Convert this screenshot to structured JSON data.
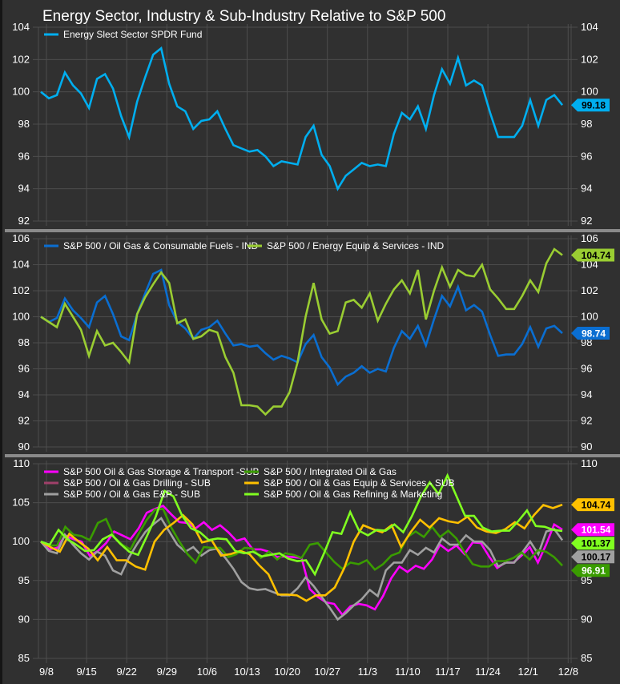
{
  "title": "Energy Sector, Industry & Sub-Industry Relative to S&P 500",
  "x_tick_labels": [
    "9/8",
    "9/15",
    "9/22",
    "9/29",
    "10/6",
    "10/13",
    "10/20",
    "10/27",
    "11/3",
    "11/10",
    "11/17",
    "11/24",
    "12/1",
    "12/8"
  ],
  "chart_data": [
    {
      "type": "line",
      "title": "Energy Sector, Industry & Sub-Industry Relative to S&P 500",
      "ylim": [
        92,
        104
      ],
      "yticks": [
        92,
        94,
        96,
        98,
        100,
        102,
        104
      ],
      "grid": true,
      "legend": "top-left",
      "series": [
        {
          "name": "Energy Slect Sector SPDR Fund",
          "color": "#00aeef",
          "last_label": "99.18",
          "label_text_color": "#000000",
          "values": [
            100,
            99.6,
            99.8,
            101.2,
            100.4,
            99.9,
            99.0,
            100.8,
            101.1,
            100.2,
            98.5,
            97.2,
            99.4,
            100.9,
            102.3,
            102.7,
            100.5,
            99.1,
            98.8,
            97.7,
            98.2,
            98.3,
            98.8,
            97.7,
            96.7,
            96.5,
            96.3,
            96.4,
            96.0,
            95.4,
            95.7,
            95.6,
            95.5,
            97.2,
            97.9,
            96.1,
            95.4,
            94.0,
            94.8,
            95.2,
            95.6,
            95.4,
            95.5,
            95.4,
            97.4,
            98.7,
            98.3,
            99.1,
            97.7,
            99.8,
            101.4,
            100.5,
            102.1,
            100.4,
            100.7,
            100.4,
            98.7,
            97.2,
            97.2,
            97.2,
            97.9,
            99.5,
            97.9,
            99.5,
            99.8,
            99.18
          ]
        }
      ]
    },
    {
      "type": "line",
      "ylim": [
        90,
        106
      ],
      "yticks": [
        90,
        92,
        94,
        96,
        98,
        100,
        102,
        104,
        106
      ],
      "grid": true,
      "legend": "top-left",
      "series": [
        {
          "name": "S&P 500 / Oil Gas & Consumable Fuels - IND",
          "color": "#0a6ed1",
          "last_label": "98.74",
          "label_text_color": "#ffffff",
          "values": [
            100,
            99.6,
            99.9,
            101.4,
            100.5,
            99.9,
            99.2,
            101.1,
            101.6,
            100.2,
            98.5,
            98.2,
            100.2,
            101.8,
            103.3,
            103.6,
            100.9,
            99.6,
            99.1,
            98.3,
            99.0,
            99.2,
            99.7,
            98.7,
            97.8,
            97.9,
            97.7,
            97.8,
            97.2,
            96.7,
            97.0,
            96.8,
            96.5,
            97.9,
            98.6,
            96.9,
            96.1,
            94.8,
            95.4,
            95.7,
            96.2,
            95.7,
            96.0,
            95.8,
            97.6,
            98.9,
            98.3,
            99.3,
            97.8,
            99.8,
            101.6,
            100.8,
            102.3,
            100.5,
            100.9,
            100.4,
            98.6,
            97.0,
            97.1,
            97.1,
            97.9,
            99.2,
            97.7,
            99.1,
            99.3,
            98.74
          ]
        },
        {
          "name": "S&P 500 / Energy Equip & Services - IND",
          "color": "#9acd32",
          "last_label": "104.74",
          "label_text_color": "#000000",
          "values": [
            100,
            99.6,
            99.2,
            101.0,
            100.0,
            99.0,
            97.0,
            98.9,
            97.8,
            98.0,
            97.3,
            96.5,
            100.2,
            101.5,
            102.5,
            103.4,
            102.6,
            99.5,
            99.8,
            98.3,
            98.5,
            99.0,
            98.8,
            96.9,
            95.7,
            93.2,
            93.2,
            93.1,
            92.5,
            93.1,
            93.1,
            94.2,
            96.5,
            100.0,
            102.6,
            99.8,
            98.7,
            98.9,
            101.1,
            101.3,
            100.7,
            101.8,
            99.7,
            101.0,
            102.1,
            102.8,
            101.8,
            103.6,
            99.8,
            102.0,
            103.8,
            102.3,
            103.6,
            103.2,
            103.1,
            104.0,
            102.1,
            101.4,
            100.6,
            100.6,
            101.6,
            102.8,
            101.9,
            104.1,
            105.2,
            104.74
          ]
        }
      ]
    },
    {
      "type": "line",
      "ylim": [
        85,
        110
      ],
      "yticks": [
        85,
        90,
        95,
        100,
        105,
        110
      ],
      "grid": true,
      "legend": "top-left",
      "series": [
        {
          "name": "S&P 500 Oil & Gas Storage & Transport -SUB",
          "color": "#ff00ff",
          "last_label": "101.54",
          "label_text_color": "#ffffff",
          "values": [
            100,
            99.0,
            99.2,
            100.8,
            100.3,
            100.0,
            98.2,
            98.8,
            99.8,
            101.3,
            100.8,
            100.3,
            101.7,
            103.7,
            104.2,
            104.6,
            103.5,
            102.5,
            102.4,
            101.7,
            102.5,
            101.5,
            102.1,
            101.2,
            100.1,
            100.4,
            99.0,
            99.0,
            98.7,
            98.0,
            98.1,
            98.0,
            97.9,
            93.9,
            92.9,
            92.2,
            92.0,
            90.6,
            91.7,
            92.0,
            91.8,
            91.3,
            93.0,
            95.3,
            96.8,
            96.1,
            96.9,
            96.5,
            97.7,
            99.6,
            98.8,
            99.5,
            98.4,
            99.9,
            99.8,
            98.1,
            96.6,
            97.3,
            97.3,
            98.2,
            99.3,
            97.3,
            99.6,
            102.2,
            101.54
          ]
        },
        {
          "name": "S&P 500 / Oil & Gas Drilling - SUB",
          "color": "#a0406a",
          "last_label": "",
          "label_text_color": "#ffffff",
          "values": []
        },
        {
          "name": "S&P 500 / Oil & Gas E&P -  SUB",
          "color": "#a0a0a0",
          "last_label": "100.17",
          "label_text_color": "#000000",
          "values": [
            100,
            98.8,
            98.5,
            100.9,
            99.6,
            98.5,
            97.7,
            98.7,
            98.2,
            96.3,
            95.8,
            98.0,
            99.7,
            101.2,
            102.2,
            103.0,
            101.3,
            99.6,
            98.7,
            99.3,
            98.2,
            98.9,
            99.1,
            97.9,
            96.5,
            94.8,
            94.0,
            93.8,
            93.9,
            93.5,
            93.1,
            93.1,
            94.0,
            95.4,
            94.3,
            92.9,
            91.5,
            90.0,
            90.8,
            91.8,
            92.6,
            93.8,
            93.0,
            96.3,
            97.3,
            97.3,
            98.9,
            98.3,
            99.2,
            98.6,
            100.4,
            99.6,
            99.6,
            100.8,
            100.0,
            100.0,
            98.9,
            96.8,
            97.3,
            97.3,
            98.6,
            100.0,
            98.4,
            101.3,
            101.6,
            100.17
          ]
        },
        {
          "name": "S&P 500 / Integrated Oil & Gas",
          "color": "#3a9c00",
          "last_label": "96.91",
          "label_text_color": "#ffffff",
          "values": [
            100,
            99.5,
            99.5,
            101.9,
            100.9,
            100.7,
            100.2,
            102.4,
            102.9,
            100.6,
            99.6,
            99.0,
            101.0,
            102.8,
            104.1,
            104.2,
            101.8,
            100.0,
            98.4,
            97.3,
            99.3,
            99.2,
            99.2,
            98.0,
            98.4,
            99.2,
            99.1,
            97.9,
            98.7,
            97.7,
            98.5,
            98.3,
            97.9,
            99.6,
            99.8,
            98.6,
            97.4,
            96.5,
            97.3,
            97.1,
            97.6,
            96.4,
            97.1,
            98.2,
            98.6,
            100.6,
            101.3,
            100.6,
            101.9,
            100.6,
            101.4,
            100.4,
            98.6,
            97.1,
            96.8,
            96.8,
            97.5,
            97.5,
            97.9,
            98.6,
            97.7,
            98.9,
            98.7,
            98.0,
            96.91
          ]
        },
        {
          "name": "S&P 500 / Oil & Gas Equip & Services - SUB",
          "color": "#ffc000",
          "last_label": "104.74",
          "label_text_color": "#000000",
          "values": [
            100,
            99.3,
            98.7,
            101.0,
            100.0,
            99.1,
            97.6,
            99.3,
            97.6,
            97.6,
            96.8,
            96.4,
            100.0,
            101.5,
            102.4,
            103.4,
            102.2,
            99.9,
            100.2,
            98.2,
            98.4,
            98.8,
            98.4,
            97.0,
            95.8,
            93.2,
            93.2,
            93.1,
            92.4,
            93.1,
            93.1,
            94.1,
            96.6,
            100.0,
            102.1,
            101.6,
            101.2,
            102.1,
            99.3,
            101.2,
            102.8,
            101.8,
            103.0,
            102.6,
            102.4,
            103.2,
            101.8,
            101.3,
            101.1,
            101.6,
            102.5,
            101.7,
            103.4,
            104.7,
            104.3,
            104.74
          ]
        },
        {
          "name": "S&P 500 / Oil & Gas Refining & Marketing",
          "color": "#80ff20",
          "last_label": "101.37",
          "label_text_color": "#000000",
          "values": [
            100,
            99.6,
            101.5,
            100.3,
            99.6,
            98.8,
            98.9,
            100.3,
            100.9,
            99.7,
            98.7,
            98.3,
            100.7,
            103.2,
            106.5,
            105.8,
            103.3,
            101.7,
            101.2,
            100.2,
            100.4,
            100.3,
            98.8,
            98.5,
            98.7,
            98.1,
            98.3,
            98.5,
            97.8,
            97.5,
            97.6,
            95.8,
            98.4,
            101.2,
            101.0,
            103.8,
            101.4,
            100.8,
            101.5,
            101.4,
            102.2,
            101.2,
            103.3,
            105.8,
            107.6,
            106.1,
            108.5,
            105.9,
            103.3,
            103.3,
            101.8,
            101.3,
            101.4,
            101.4,
            102.6,
            104.0,
            102.0,
            101.9,
            101.5,
            101.37
          ]
        }
      ]
    }
  ]
}
